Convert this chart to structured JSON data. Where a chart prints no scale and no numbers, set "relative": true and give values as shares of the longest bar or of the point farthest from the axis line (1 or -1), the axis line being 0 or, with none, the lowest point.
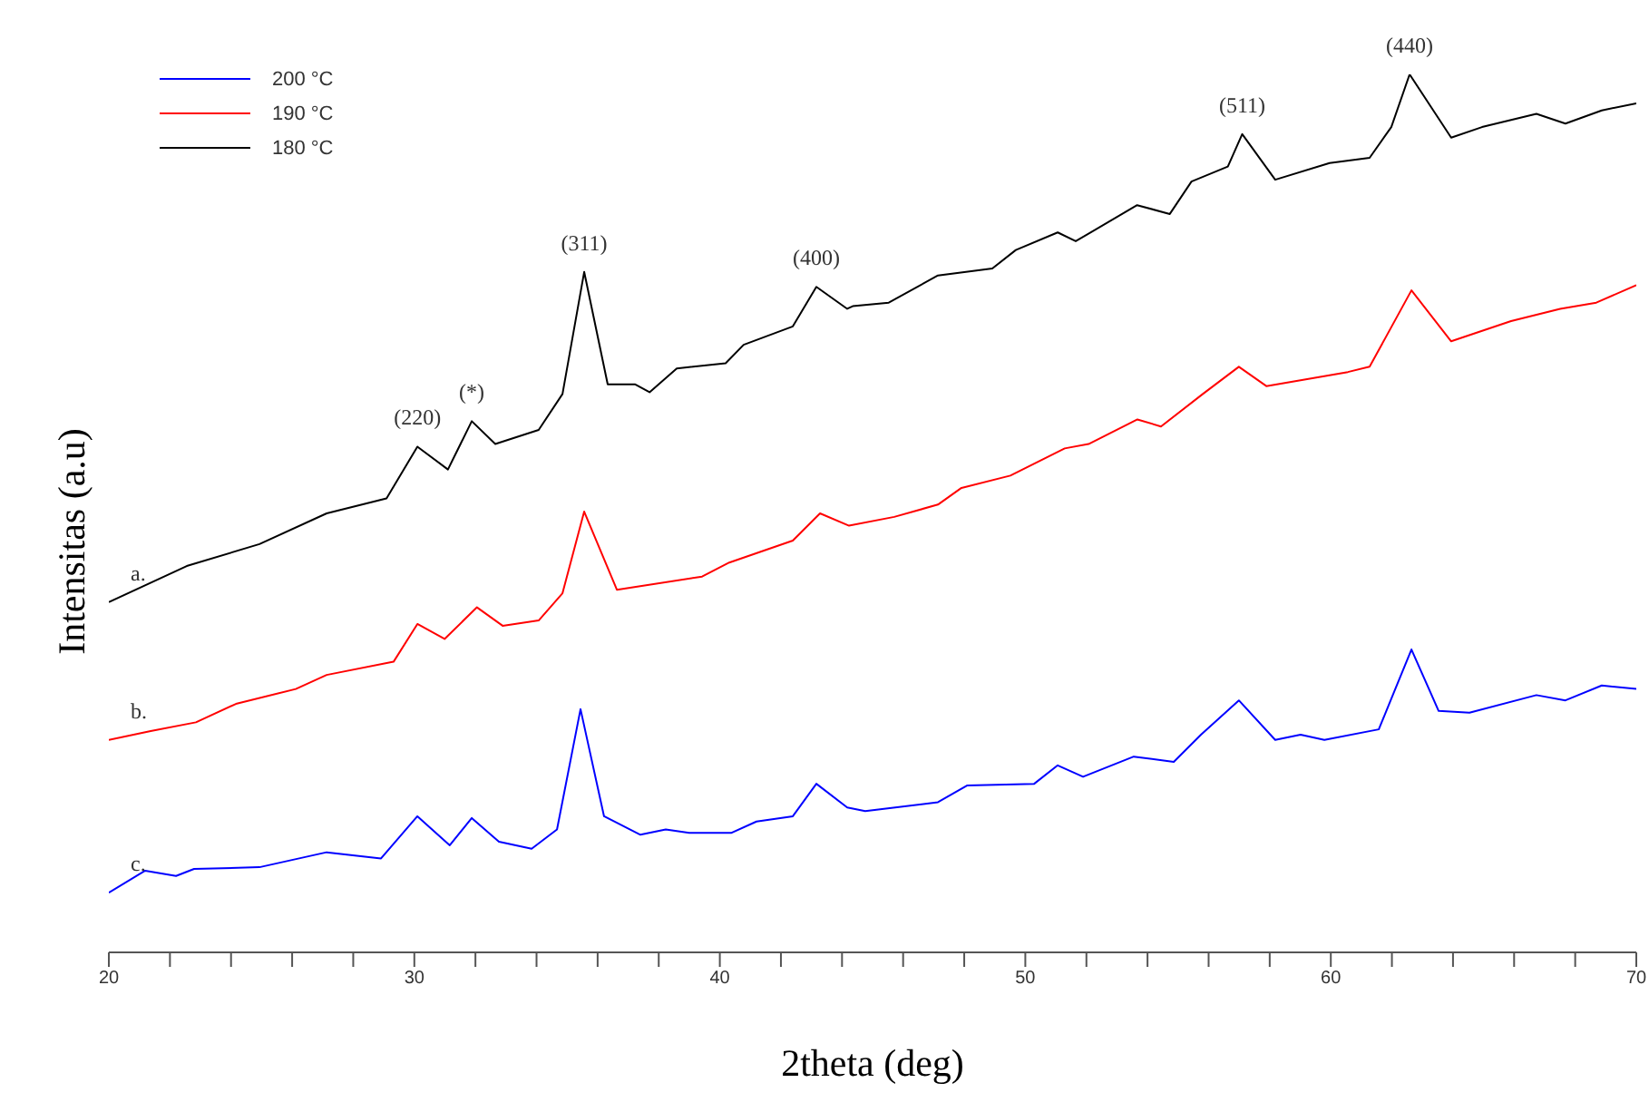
{
  "chart_data": {
    "type": "line",
    "relative": true,
    "xlabel": "2theta (deg)",
    "ylabel": "Intensitas (a.u)",
    "xlim": [
      20,
      70
    ],
    "xticks": [
      20,
      {
        "value": 22,
        "label": null
      },
      {
        "value": 24,
        "label": null
      },
      {
        "value": 26,
        "label": null
      },
      {
        "value": 28,
        "label": null
      },
      30,
      {
        "value": 32,
        "label": null
      },
      {
        "value": 34,
        "label": null
      },
      {
        "value": 36,
        "label": null
      },
      {
        "value": 38,
        "label": null
      },
      40,
      {
        "value": 42,
        "label": null
      },
      {
        "value": 44,
        "label": null
      },
      {
        "value": 46,
        "label": null
      },
      {
        "value": 48,
        "label": null
      },
      50,
      {
        "value": 52,
        "label": null
      },
      {
        "value": 54,
        "label": null
      },
      {
        "value": 56,
        "label": null
      },
      {
        "value": 58,
        "label": null
      },
      60,
      {
        "value": 62,
        "label": null
      },
      {
        "value": 64,
        "label": null
      },
      {
        "value": 66,
        "label": null
      },
      {
        "value": 68,
        "label": null
      },
      70
    ],
    "grid": false,
    "legend": "top left",
    "marker": "none",
    "line_style": "solid",
    "series": [
      {
        "name": "200 °C",
        "color": "#0000ff",
        "x": [
          20,
          21.19,
          22.2,
          22.79,
          24.93,
          27.13,
          28.91,
          30.1,
          31.16,
          31.88,
          32.77,
          33.84,
          34.67,
          35.44,
          36.21,
          37.4,
          38.23,
          39.0,
          40.37,
          41.2,
          42.39,
          43.16,
          44.17,
          44.76,
          47.14,
          48.09,
          50.29,
          51.06,
          51.89,
          53.55,
          54.86,
          55.75,
          56.99,
          58.18,
          59.01,
          59.79,
          61.57,
          62.64,
          63.53,
          64.54,
          66.73,
          67.68,
          68.87,
          70
        ],
        "values": [
          0.068,
          0.093,
          0.087,
          0.095,
          0.097,
          0.114,
          0.107,
          0.155,
          0.122,
          0.153,
          0.126,
          0.118,
          0.14,
          0.277,
          0.155,
          0.134,
          0.14,
          0.136,
          0.136,
          0.149,
          0.155,
          0.192,
          0.165,
          0.161,
          0.171,
          0.19,
          0.192,
          0.213,
          0.2,
          0.223,
          0.217,
          0.248,
          0.287,
          0.242,
          0.248,
          0.242,
          0.254,
          0.345,
          0.275,
          0.273,
          0.293,
          0.287,
          0.304,
          0.3
        ]
      },
      {
        "name": "190 °C",
        "color": "#ff0000",
        "x": [
          20,
          21.37,
          22.85,
          24.16,
          26.12,
          27.13,
          29.32,
          30.1,
          30.99,
          32.05,
          32.89,
          34.07,
          34.85,
          35.56,
          36.63,
          39.42,
          40.31,
          42.39,
          43.28,
          44.23,
          45.71,
          47.14,
          47.91,
          49.51,
          51.29,
          52.07,
          53.67,
          54.44,
          55.81,
          56.99,
          57.89,
          60.56,
          61.27,
          62.64,
          63.94,
          65.9,
          67.51,
          68.69,
          70
        ],
        "values": [
          0.242,
          0.252,
          0.262,
          0.283,
          0.3,
          0.316,
          0.331,
          0.374,
          0.357,
          0.393,
          0.372,
          0.378,
          0.409,
          0.502,
          0.413,
          0.428,
          0.444,
          0.469,
          0.5,
          0.486,
          0.496,
          0.51,
          0.529,
          0.543,
          0.574,
          0.579,
          0.607,
          0.599,
          0.636,
          0.667,
          0.645,
          0.661,
          0.667,
          0.754,
          0.696,
          0.719,
          0.733,
          0.74,
          0.76
        ]
      },
      {
        "name": "180 °C",
        "color": "#000000",
        "x": [
          20,
          22.55,
          24.93,
          27.13,
          29.09,
          30.1,
          31.1,
          31.88,
          32.65,
          34.07,
          34.85,
          35.56,
          36.33,
          37.22,
          37.7,
          38.59,
          40.19,
          40.78,
          42.39,
          43.16,
          44.17,
          44.35,
          45.53,
          47.14,
          48.92,
          49.69,
          51.06,
          51.65,
          53.66,
          54.73,
          55.44,
          56.63,
          57.1,
          58.18,
          59.96,
          61.27,
          61.98,
          62.58,
          63.94,
          64.95,
          66.73,
          67.68,
          68.87,
          70
        ],
        "values": [
          0.399,
          0.44,
          0.465,
          0.5,
          0.517,
          0.576,
          0.55,
          0.605,
          0.579,
          0.595,
          0.636,
          0.775,
          0.647,
          0.647,
          0.638,
          0.665,
          0.671,
          0.692,
          0.713,
          0.758,
          0.733,
          0.736,
          0.74,
          0.771,
          0.779,
          0.8,
          0.82,
          0.81,
          0.851,
          0.841,
          0.878,
          0.895,
          0.932,
          0.88,
          0.899,
          0.905,
          0.94,
          1.0,
          0.928,
          0.94,
          0.955,
          0.944,
          0.959,
          0.967
        ]
      }
    ],
    "annotations": [
      {
        "text": "(220)",
        "x": 30.1,
        "y": 0.576
      },
      {
        "text": "(*)",
        "x": 31.88,
        "y": 0.605
      },
      {
        "text": "(311)",
        "x": 35.56,
        "y": 0.775
      },
      {
        "text": "(400)",
        "x": 43.16,
        "y": 0.758
      },
      {
        "text": "(511)",
        "x": 57.1,
        "y": 0.932
      },
      {
        "text": "(440)",
        "x": 62.58,
        "y": 1.0
      },
      {
        "text": "a.",
        "x": 20,
        "y": 0.399
      },
      {
        "text": "b.",
        "x": 20,
        "y": 0.242
      },
      {
        "text": "c.",
        "x": 20,
        "y": 0.068
      }
    ]
  }
}
